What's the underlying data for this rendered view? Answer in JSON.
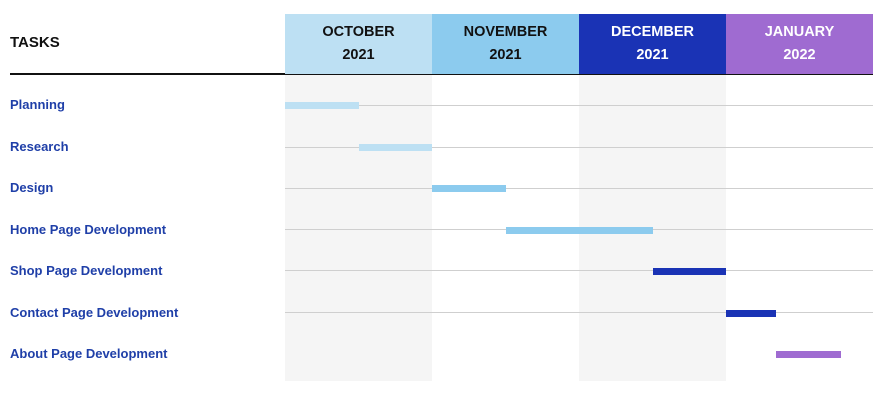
{
  "chart_data": {
    "type": "gantt",
    "header_label": "TASKS",
    "months": [
      {
        "line1": "OCTOBER",
        "line2": "2021",
        "color": "#bde0f3",
        "text_color": "#111111"
      },
      {
        "line1": "NOVEMBER",
        "line2": "2021",
        "color": "#8ccbee",
        "text_color": "#111111"
      },
      {
        "line1": "DECEMBER",
        "line2": "2021",
        "color": "#1a33b5",
        "text_color": "#ffffff"
      },
      {
        "line1": "JANUARY",
        "line2": "2022",
        "color": "#9f6bd1",
        "text_color": "#ffffff"
      }
    ],
    "tasks": [
      {
        "name": "Planning",
        "start": 0.0,
        "end": 0.5,
        "color": "#bde0f3"
      },
      {
        "name": "Research",
        "start": 0.5,
        "end": 1.0,
        "color": "#bde0f3"
      },
      {
        "name": "Design",
        "start": 1.0,
        "end": 1.5,
        "color": "#8ccbee"
      },
      {
        "name": "Home Page Development",
        "start": 1.5,
        "end": 2.5,
        "color": "#8ccbee"
      },
      {
        "name": "Shop Page Development",
        "start": 2.5,
        "end": 3.0,
        "color": "#1a33b5"
      },
      {
        "name": "Contact Page Development",
        "start": 3.0,
        "end": 3.34,
        "color": "#1a33b5"
      },
      {
        "name": "About Page Development",
        "start": 3.34,
        "end": 3.78,
        "color": "#9f6bd1"
      }
    ],
    "shaded_months": [
      0,
      2
    ]
  }
}
